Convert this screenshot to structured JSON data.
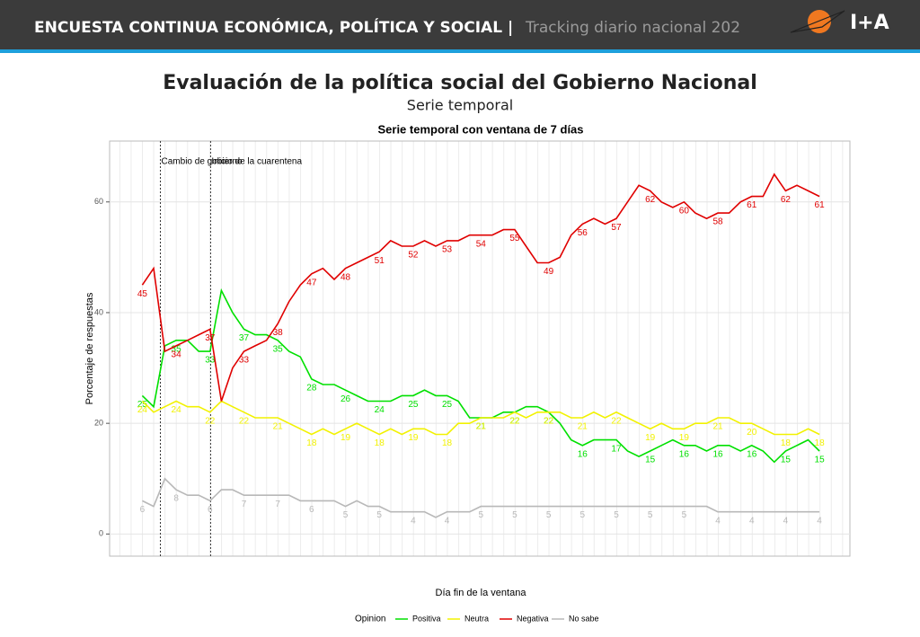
{
  "header": {
    "title": "ENCUESTA CONTINUA ECONÓMICA, POLÍTICA Y SOCIAL |",
    "subtitle": "Tracking diario nacional 202",
    "logo": "I+A"
  },
  "chart_data": {
    "type": "line",
    "title": "Evaluación de la política social del Gobierno Nacional",
    "subtitle": "Serie temporal",
    "plot_title": "Serie temporal con ventana de 7 días",
    "x_label": "Día fin de la ventana",
    "y_label": "Porcentaje de respuestas",
    "legend_title": "Opinion",
    "x": [
      0,
      1,
      2,
      3,
      4,
      5,
      6,
      7,
      8,
      9,
      10,
      11,
      12,
      13,
      14,
      15,
      16,
      17,
      18,
      19,
      20,
      21,
      22,
      23,
      24,
      25,
      26,
      27,
      28,
      29,
      30,
      31,
      32,
      33,
      34,
      35,
      36,
      37,
      38,
      39,
      40,
      41,
      42,
      43,
      44,
      45,
      46,
      47,
      48,
      49,
      50,
      51,
      52,
      53,
      54,
      55,
      56,
      57,
      58,
      59,
      60
    ],
    "xlim": [
      -2.9,
      62.7
    ],
    "ylim": [
      -4,
      71
    ],
    "yticks": [
      0,
      20,
      40,
      60
    ],
    "grid": true,
    "annotations": [
      {
        "label": "Cambio de gobierno",
        "x": 1.6
      },
      {
        "label": "Inicio de la cuarentena",
        "x": 6.05
      }
    ],
    "series": [
      {
        "name": "Positiva",
        "color": "#00e000",
        "values": [
          25,
          23,
          34,
          35,
          35,
          33,
          33,
          44,
          40,
          37,
          36,
          36,
          35,
          33,
          32,
          28,
          27,
          27,
          26,
          25,
          24,
          24,
          24,
          25,
          25,
          26,
          25,
          25,
          24,
          21,
          21,
          21,
          22,
          22,
          23,
          23,
          22,
          20,
          17,
          16,
          17,
          17,
          17,
          15,
          14,
          15,
          16,
          17,
          16,
          16,
          15,
          16,
          16,
          15,
          16,
          15,
          13,
          15,
          16,
          17,
          15
        ]
      },
      {
        "name": "Neutra",
        "color": "#f2f200",
        "values": [
          24,
          22,
          23,
          24,
          23,
          23,
          22,
          24,
          23,
          22,
          21,
          21,
          21,
          20,
          19,
          18,
          19,
          18,
          19,
          20,
          19,
          18,
          19,
          18,
          19,
          19,
          18,
          18,
          20,
          20,
          21,
          21,
          21,
          22,
          21,
          22,
          22,
          22,
          21,
          21,
          22,
          21,
          22,
          21,
          20,
          19,
          20,
          19,
          19,
          20,
          20,
          21,
          21,
          20,
          20,
          19,
          18,
          18,
          18,
          19,
          18
        ]
      },
      {
        "name": "Negativa",
        "color": "#e00000",
        "values": [
          45,
          48,
          33,
          34,
          35,
          36,
          37,
          24,
          30,
          33,
          34,
          35,
          38,
          42,
          45,
          47,
          48,
          46,
          48,
          49,
          50,
          51,
          53,
          52,
          52,
          53,
          52,
          53,
          53,
          54,
          54,
          54,
          55,
          55,
          52,
          49,
          49,
          50,
          54,
          56,
          57,
          56,
          57,
          60,
          63,
          62,
          60,
          59,
          60,
          58,
          57,
          58,
          58,
          60,
          61,
          61,
          65,
          62,
          63,
          62,
          61
        ]
      },
      {
        "name": "No sabe",
        "color": "#b8b8b8",
        "values": [
          6,
          5,
          10,
          8,
          7,
          7,
          6,
          8,
          8,
          7,
          7,
          7,
          7,
          7,
          6,
          6,
          6,
          6,
          5,
          6,
          5,
          5,
          4,
          4,
          4,
          4,
          3,
          4,
          4,
          4,
          5,
          5,
          5,
          5,
          5,
          5,
          5,
          5,
          5,
          5,
          5,
          5,
          5,
          5,
          5,
          5,
          5,
          5,
          5,
          5,
          5,
          4,
          4,
          4,
          4,
          4,
          4,
          4,
          4,
          4,
          4
        ]
      }
    ]
  }
}
